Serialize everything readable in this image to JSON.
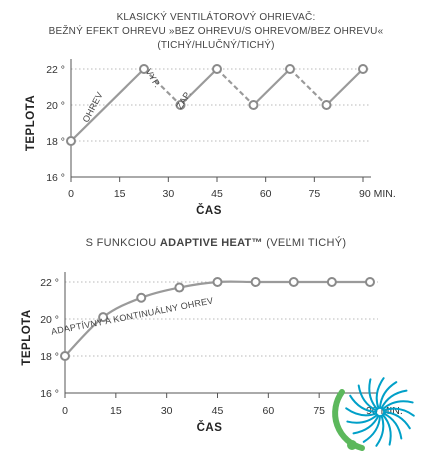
{
  "chart_data": [
    {
      "type": "line",
      "title_lines": [
        "KLASICKÝ VENTILÁTOROVÝ OHRIEVAČ:",
        "BEŽNÝ EFEKT OHREVU »BEZ OHREVU/S OHREVOM/BEZ OHREVU«",
        "(TICHÝ/HLUČNÝ/TICHÝ)"
      ],
      "xlabel": "ČAS",
      "ylabel": "TEPLOTA",
      "x_ticks": [
        "0",
        "15",
        "30",
        "45",
        "60",
        "75",
        "90 MIN."
      ],
      "y_ticks": [
        "16 °",
        "18 °",
        "20 °",
        "22 °"
      ],
      "xlim": [
        0,
        90
      ],
      "ylim": [
        16,
        22
      ],
      "grid": "horizontal-dotted",
      "annotations": [
        "OHREV",
        "VYP.",
        "ZAP."
      ],
      "series": [
        {
          "x": [
            0,
            22.5,
            33.75,
            45,
            56.25,
            67.5,
            78.75,
            90
          ],
          "y": [
            18,
            22,
            20,
            22,
            20,
            22,
            20,
            22
          ],
          "segment_styles": [
            "solid",
            "dashed",
            "solid",
            "dashed",
            "solid",
            "dashed",
            "solid"
          ]
        }
      ]
    },
    {
      "type": "line",
      "title_prefix": "S FUNKCIOU ",
      "title_bold": "ADAPTIVE HEAT™",
      "title_suffix": " (VEĽMI TICHÝ)",
      "xlabel": "ČAS",
      "ylabel": "TEPLOTA",
      "x_ticks": [
        "0",
        "15",
        "30",
        "45",
        "60",
        "75",
        "90 MIN."
      ],
      "y_ticks": [
        "16 °",
        "18 °",
        "20 °",
        "22 °"
      ],
      "xlim": [
        0,
        90
      ],
      "ylim": [
        16,
        22
      ],
      "grid": "horizontal-dotted",
      "annotations": [
        "ADAPTÍVNY A KONTINUÁLNY OHREV"
      ],
      "series": [
        {
          "x": [
            0,
            11.25,
            22.5,
            33.75,
            45,
            56.25,
            67.5,
            78.75,
            90
          ],
          "y": [
            18,
            20.1,
            21.15,
            21.7,
            22,
            22,
            22,
            22,
            22
          ]
        }
      ]
    }
  ],
  "colors": {
    "line": "#9a9a9a",
    "axis": "#555555",
    "grid": "#b8b8b8",
    "logo_blue": "#00a0c8",
    "logo_green": "#5cb85c"
  },
  "logo": {
    "icon": "fan-swirl-logo"
  }
}
